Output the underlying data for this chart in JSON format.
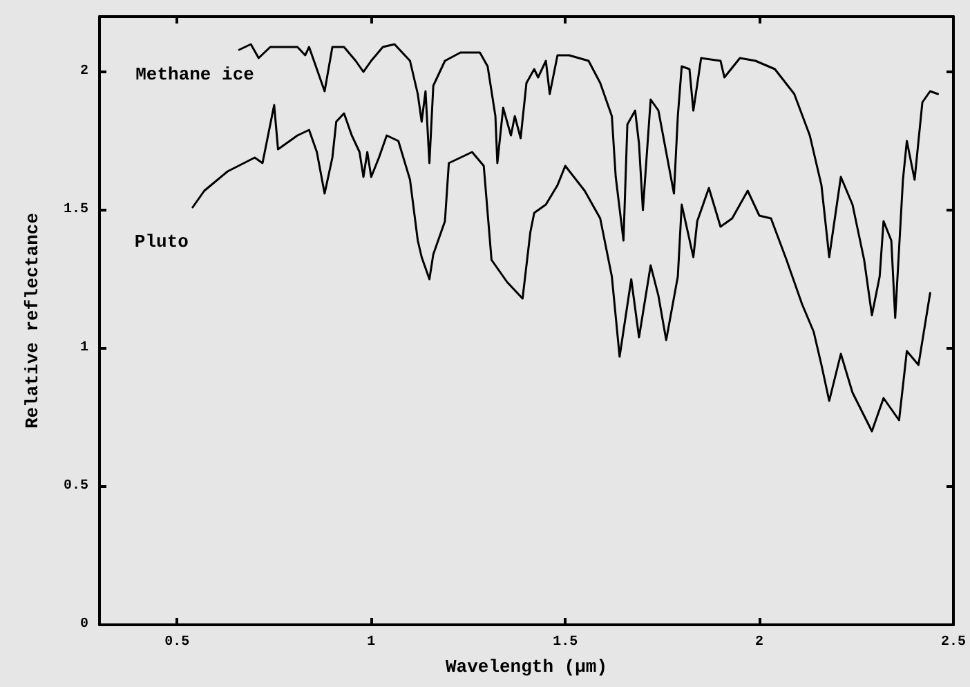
{
  "chart_data": {
    "type": "line",
    "xlabel": "Wavelength (µm)",
    "ylabel": "Relative reflectance",
    "xlim": [
      0.3,
      2.5
    ],
    "xticks": [
      0.5,
      1,
      1.5,
      2,
      2.5
    ],
    "ylim": [
      0,
      2.2
    ],
    "yticks": [
      0,
      0.5,
      1,
      1.5,
      2
    ],
    "grid": false,
    "legend": false,
    "marker": "none",
    "line_style": "solid",
    "series": [
      {
        "name": "Methane ice",
        "color": "#000000",
        "x": [
          0.66,
          0.69,
          0.71,
          0.74,
          0.81,
          0.83,
          0.84,
          0.88,
          0.9,
          0.93,
          0.96,
          0.98,
          1.0,
          1.03,
          1.06,
          1.1,
          1.12,
          1.13,
          1.14,
          1.15,
          1.16,
          1.19,
          1.23,
          1.28,
          1.3,
          1.32,
          1.325,
          1.34,
          1.36,
          1.37,
          1.385,
          1.4,
          1.42,
          1.43,
          1.45,
          1.46,
          1.48,
          1.51,
          1.56,
          1.59,
          1.62,
          1.63,
          1.65,
          1.66,
          1.68,
          1.69,
          1.7,
          1.72,
          1.74,
          1.76,
          1.78,
          1.79,
          1.8,
          1.82,
          1.83,
          1.85,
          1.9,
          1.91,
          1.95,
          1.99,
          2.04,
          2.09,
          2.13,
          2.16,
          2.18,
          2.21,
          2.24,
          2.27,
          2.29,
          2.31,
          2.32,
          2.34,
          2.35,
          2.37,
          2.38,
          2.4,
          2.42,
          2.44,
          2.46
        ],
        "values": [
          2.08,
          2.1,
          2.05,
          2.09,
          2.09,
          2.06,
          2.09,
          1.93,
          2.09,
          2.09,
          2.04,
          2.0,
          2.04,
          2.09,
          2.1,
          2.04,
          1.92,
          1.82,
          1.93,
          1.67,
          1.95,
          2.04,
          2.07,
          2.07,
          2.02,
          1.84,
          1.67,
          1.87,
          1.77,
          1.84,
          1.76,
          1.96,
          2.01,
          1.98,
          2.04,
          1.92,
          2.06,
          2.06,
          2.04,
          1.96,
          1.84,
          1.62,
          1.39,
          1.81,
          1.86,
          1.74,
          1.5,
          1.9,
          1.86,
          1.71,
          1.56,
          1.84,
          2.02,
          2.01,
          1.86,
          2.05,
          2.04,
          1.98,
          2.05,
          2.04,
          2.01,
          1.92,
          1.77,
          1.59,
          1.33,
          1.62,
          1.52,
          1.32,
          1.12,
          1.26,
          1.46,
          1.39,
          1.11,
          1.61,
          1.75,
          1.61,
          1.89,
          1.93,
          1.92
        ]
      },
      {
        "name": "Pluto",
        "color": "#000000",
        "x": [
          0.54,
          0.57,
          0.63,
          0.7,
          0.72,
          0.75,
          0.76,
          0.81,
          0.84,
          0.86,
          0.88,
          0.9,
          0.91,
          0.93,
          0.95,
          0.97,
          0.98,
          0.99,
          1.0,
          1.02,
          1.04,
          1.07,
          1.1,
          1.12,
          1.13,
          1.15,
          1.16,
          1.19,
          1.2,
          1.23,
          1.26,
          1.29,
          1.31,
          1.35,
          1.39,
          1.41,
          1.42,
          1.45,
          1.48,
          1.5,
          1.55,
          1.59,
          1.62,
          1.64,
          1.67,
          1.69,
          1.72,
          1.74,
          1.76,
          1.79,
          1.8,
          1.83,
          1.84,
          1.87,
          1.9,
          1.93,
          1.97,
          2.0,
          2.03,
          2.07,
          2.11,
          2.14,
          2.16,
          2.18,
          2.21,
          2.24,
          2.29,
          2.32,
          2.36,
          2.38,
          2.41,
          2.44
        ],
        "values": [
          1.51,
          1.57,
          1.64,
          1.69,
          1.67,
          1.88,
          1.72,
          1.77,
          1.79,
          1.71,
          1.56,
          1.69,
          1.82,
          1.85,
          1.77,
          1.71,
          1.62,
          1.71,
          1.62,
          1.69,
          1.77,
          1.75,
          1.61,
          1.39,
          1.33,
          1.25,
          1.34,
          1.46,
          1.67,
          1.69,
          1.71,
          1.66,
          1.32,
          1.24,
          1.18,
          1.42,
          1.49,
          1.52,
          1.59,
          1.66,
          1.57,
          1.47,
          1.26,
          0.97,
          1.25,
          1.04,
          1.3,
          1.19,
          1.03,
          1.26,
          1.52,
          1.33,
          1.46,
          1.58,
          1.44,
          1.47,
          1.57,
          1.48,
          1.47,
          1.32,
          1.16,
          1.06,
          0.94,
          0.81,
          0.98,
          0.84,
          0.7,
          0.82,
          0.74,
          0.99,
          0.94,
          1.2
        ]
      }
    ]
  }
}
